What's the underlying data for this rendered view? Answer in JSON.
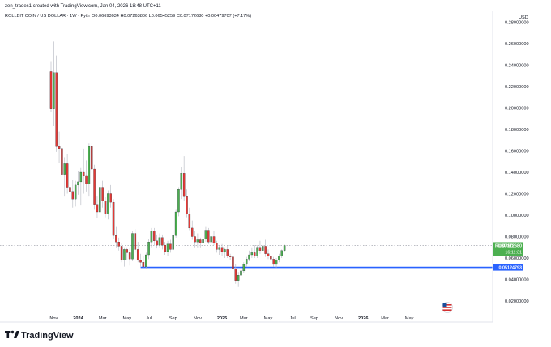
{
  "header": {
    "created_by": "zen_trades1 created with TradingView.com, Jan 04, 2026 18:48 UTC+11",
    "symbol": "ROLLBIT COIN / US DOLLAR · 1W · Pyth",
    "ohlc": "O0.06693034 H0.07263806 L0.06545259 C0.07172680 +0.00479707 (+7.17%)"
  },
  "branding": {
    "name": "TradingView",
    "logo_icon": "tradingview-logo-icon"
  },
  "colors": {
    "up": "#26a69a",
    "up_body": "#4caf50",
    "down": "#ef5350",
    "down_body": "#e53935",
    "wick": "#b2b5be",
    "support_line": "#2962ff",
    "price_tag": "#4caf50",
    "support_tag": "#2962ff"
  },
  "chart_data": {
    "type": "candlestick",
    "title": "ROLLBIT COIN / US DOLLAR · 1W · Pyth",
    "ylabel": "USD",
    "xlabel": "",
    "ylim": [
      0.01,
      0.288
    ],
    "y_ticks": [
      "0.28000000",
      "0.26000000",
      "0.24000000",
      "0.22000000",
      "0.20000000",
      "0.18000000",
      "0.16000000",
      "0.14000000",
      "0.12000000",
      "0.10000000",
      "0.08000000",
      "0.06000000",
      "0.04000000",
      "0.02000000"
    ],
    "y_tick_values": [
      0.28,
      0.26,
      0.24,
      0.22,
      0.2,
      0.18,
      0.16,
      0.14,
      0.12,
      0.1,
      0.08,
      0.06,
      0.04,
      0.02
    ],
    "x_ticks": [
      "Nov",
      "2024",
      "Mar",
      "May",
      "Jul",
      "Sep",
      "Nov",
      "2025",
      "Mar",
      "May",
      "Jul",
      "Sep",
      "Nov",
      "2026",
      "Mar",
      "May"
    ],
    "x_tick_bold": [
      false,
      true,
      false,
      false,
      false,
      false,
      false,
      true,
      false,
      false,
      false,
      false,
      false,
      true,
      false,
      false
    ],
    "x_tick_index": [
      1,
      10,
      19,
      28,
      36,
      45,
      54,
      63,
      71,
      80,
      89,
      97,
      106,
      115,
      123,
      132
    ],
    "grid": false,
    "price_label": {
      "symbol": "RLBUSD",
      "price": "0.07172680",
      "countdown": "16:11:31",
      "value": 0.0717268
    },
    "support_line": {
      "value": 0.05124793,
      "label": "0.05124793",
      "from_index": 33
    },
    "candles": [
      [
        0.234,
        0.243,
        0.196,
        0.199
      ],
      [
        0.199,
        0.262,
        0.183,
        0.233
      ],
      [
        0.233,
        0.249,
        0.159,
        0.164
      ],
      [
        0.164,
        0.178,
        0.149,
        0.162
      ],
      [
        0.162,
        0.173,
        0.132,
        0.138
      ],
      [
        0.138,
        0.154,
        0.118,
        0.148
      ],
      [
        0.148,
        0.157,
        0.12,
        0.126
      ],
      [
        0.126,
        0.14,
        0.118,
        0.122
      ],
      [
        0.122,
        0.133,
        0.107,
        0.115
      ],
      [
        0.115,
        0.132,
        0.108,
        0.128
      ],
      [
        0.128,
        0.141,
        0.119,
        0.131
      ],
      [
        0.131,
        0.144,
        0.109,
        0.14
      ],
      [
        0.14,
        0.162,
        0.12,
        0.137
      ],
      [
        0.137,
        0.151,
        0.122,
        0.129
      ],
      [
        0.129,
        0.167,
        0.118,
        0.164
      ],
      [
        0.164,
        0.167,
        0.139,
        0.143
      ],
      [
        0.143,
        0.147,
        0.105,
        0.11
      ],
      [
        0.11,
        0.118,
        0.097,
        0.103
      ],
      [
        0.103,
        0.129,
        0.1,
        0.126
      ],
      [
        0.126,
        0.132,
        0.107,
        0.113
      ],
      [
        0.113,
        0.117,
        0.098,
        0.101
      ],
      [
        0.101,
        0.123,
        0.096,
        0.12
      ],
      [
        0.12,
        0.128,
        0.107,
        0.112
      ],
      [
        0.112,
        0.115,
        0.078,
        0.081
      ],
      [
        0.081,
        0.089,
        0.07,
        0.075
      ],
      [
        0.075,
        0.079,
        0.067,
        0.071
      ],
      [
        0.071,
        0.074,
        0.056,
        0.058
      ],
      [
        0.058,
        0.07,
        0.052,
        0.068
      ],
      [
        0.068,
        0.07,
        0.058,
        0.065
      ],
      [
        0.065,
        0.07,
        0.053,
        0.059
      ],
      [
        0.059,
        0.085,
        0.057,
        0.083
      ],
      [
        0.083,
        0.087,
        0.065,
        0.068
      ],
      [
        0.068,
        0.075,
        0.056,
        0.058
      ],
      [
        0.058,
        0.064,
        0.052,
        0.056
      ],
      [
        0.056,
        0.062,
        0.05,
        0.052
      ],
      [
        0.052,
        0.065,
        0.05,
        0.063
      ],
      [
        0.063,
        0.078,
        0.059,
        0.075
      ],
      [
        0.075,
        0.088,
        0.07,
        0.085
      ],
      [
        0.085,
        0.088,
        0.072,
        0.076
      ],
      [
        0.076,
        0.082,
        0.069,
        0.072
      ],
      [
        0.072,
        0.083,
        0.07,
        0.079
      ],
      [
        0.079,
        0.082,
        0.068,
        0.072
      ],
      [
        0.072,
        0.075,
        0.063,
        0.066
      ],
      [
        0.066,
        0.076,
        0.062,
        0.073
      ],
      [
        0.073,
        0.077,
        0.065,
        0.068
      ],
      [
        0.068,
        0.086,
        0.067,
        0.081
      ],
      [
        0.081,
        0.105,
        0.079,
        0.103
      ],
      [
        0.103,
        0.126,
        0.099,
        0.124
      ],
      [
        0.124,
        0.145,
        0.115,
        0.139
      ],
      [
        0.139,
        0.155,
        0.113,
        0.118
      ],
      [
        0.118,
        0.124,
        0.098,
        0.101
      ],
      [
        0.101,
        0.107,
        0.086,
        0.088
      ],
      [
        0.088,
        0.095,
        0.077,
        0.08
      ],
      [
        0.08,
        0.085,
        0.07,
        0.075
      ],
      [
        0.075,
        0.083,
        0.07,
        0.077
      ],
      [
        0.077,
        0.079,
        0.07,
        0.074
      ],
      [
        0.074,
        0.084,
        0.072,
        0.078
      ],
      [
        0.078,
        0.089,
        0.075,
        0.086
      ],
      [
        0.086,
        0.088,
        0.073,
        0.075
      ],
      [
        0.075,
        0.082,
        0.07,
        0.08
      ],
      [
        0.08,
        0.085,
        0.072,
        0.074
      ],
      [
        0.074,
        0.076,
        0.065,
        0.068
      ],
      [
        0.068,
        0.072,
        0.063,
        0.07
      ],
      [
        0.07,
        0.073,
        0.062,
        0.066
      ],
      [
        0.066,
        0.07,
        0.06,
        0.068
      ],
      [
        0.068,
        0.072,
        0.06,
        0.062
      ],
      [
        0.062,
        0.064,
        0.058,
        0.061
      ],
      [
        0.061,
        0.063,
        0.048,
        0.05
      ],
      [
        0.05,
        0.054,
        0.036,
        0.039
      ],
      [
        0.039,
        0.047,
        0.033,
        0.044
      ],
      [
        0.044,
        0.05,
        0.042,
        0.048
      ],
      [
        0.048,
        0.056,
        0.046,
        0.054
      ],
      [
        0.054,
        0.061,
        0.052,
        0.059
      ],
      [
        0.059,
        0.067,
        0.057,
        0.063
      ],
      [
        0.063,
        0.07,
        0.06,
        0.065
      ],
      [
        0.065,
        0.072,
        0.06,
        0.062
      ],
      [
        0.062,
        0.072,
        0.06,
        0.07
      ],
      [
        0.07,
        0.076,
        0.064,
        0.067
      ],
      [
        0.067,
        0.081,
        0.063,
        0.071
      ],
      [
        0.071,
        0.077,
        0.061,
        0.064
      ],
      [
        0.064,
        0.068,
        0.059,
        0.062
      ],
      [
        0.062,
        0.065,
        0.056,
        0.059
      ],
      [
        0.059,
        0.061,
        0.052,
        0.054
      ],
      [
        0.054,
        0.06,
        0.051,
        0.058
      ],
      [
        0.058,
        0.064,
        0.056,
        0.062
      ],
      [
        0.062,
        0.068,
        0.06,
        0.067
      ],
      [
        0.06693034,
        0.07263806,
        0.06545259,
        0.0717268
      ]
    ]
  }
}
